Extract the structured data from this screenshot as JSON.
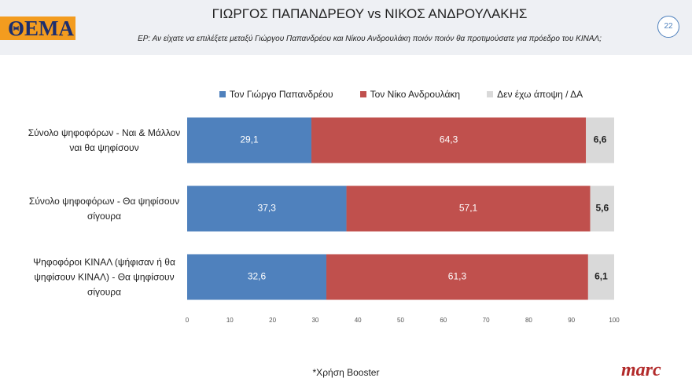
{
  "chart_data": {
    "type": "stacked-barh",
    "logo": "ΘΕΜΑ",
    "title": "ΓΙΩΡΓΟΣ ΠΑΠΑΝΔΡΕΟΥ vs ΝΙΚΟΣ ΑΝΔΡΟΥΛΑΚΗΣ",
    "subtitle": "ΕΡ: Αν είχατε να επιλέξετε μεταξύ Γιώργου Παπανδρέου και Νίκου Ανδρουλάκη ποιόν  ποιόν θα προτιμούσατε για πρόεδρο του ΚΙΝΑΛ;",
    "page_number": "22",
    "categories": [
      "Σύνολο ψηφοφόρων - Ναι & Μάλλον ναι θα ψηφίσουν",
      "Σύνολο ψηφοφόρων - Θα ψηφίσουν σίγουρα",
      "Ψηφοφόροι ΚΙΝΑΛ (ψήφισαν ή θα ψηφίσουν ΚΙΝΑΛ) - Θα ψηφίσουν σίγουρα"
    ],
    "series": [
      {
        "name": "Τον Γιώργο Παπανδρέου",
        "color": "#4f81bd",
        "label_color": "#ffffff",
        "values": [
          29.1,
          37.3,
          32.6
        ],
        "value_labels": [
          "29,1",
          "37,3",
          "32,6"
        ]
      },
      {
        "name": "Τον Νίκο Ανδρουλάκη",
        "color": "#c0504d",
        "label_color": "#ffffff",
        "values": [
          64.3,
          57.1,
          61.3
        ],
        "value_labels": [
          "64,3",
          "57,1",
          "61,3"
        ]
      },
      {
        "name": "Δεν έχω άποψη / ΔΑ",
        "color": "#d9d9d9",
        "label_color": "#222222",
        "values": [
          6.6,
          5.6,
          6.1
        ],
        "value_labels": [
          "6,6",
          "5,6",
          "6,1"
        ]
      }
    ],
    "xlim": [
      0,
      100
    ],
    "xticks": [
      0,
      10,
      20,
      30,
      40,
      50,
      60,
      70,
      80,
      90,
      100
    ],
    "legend": "top",
    "footnote": "*Χρήση Booster",
    "brand": "marc"
  }
}
